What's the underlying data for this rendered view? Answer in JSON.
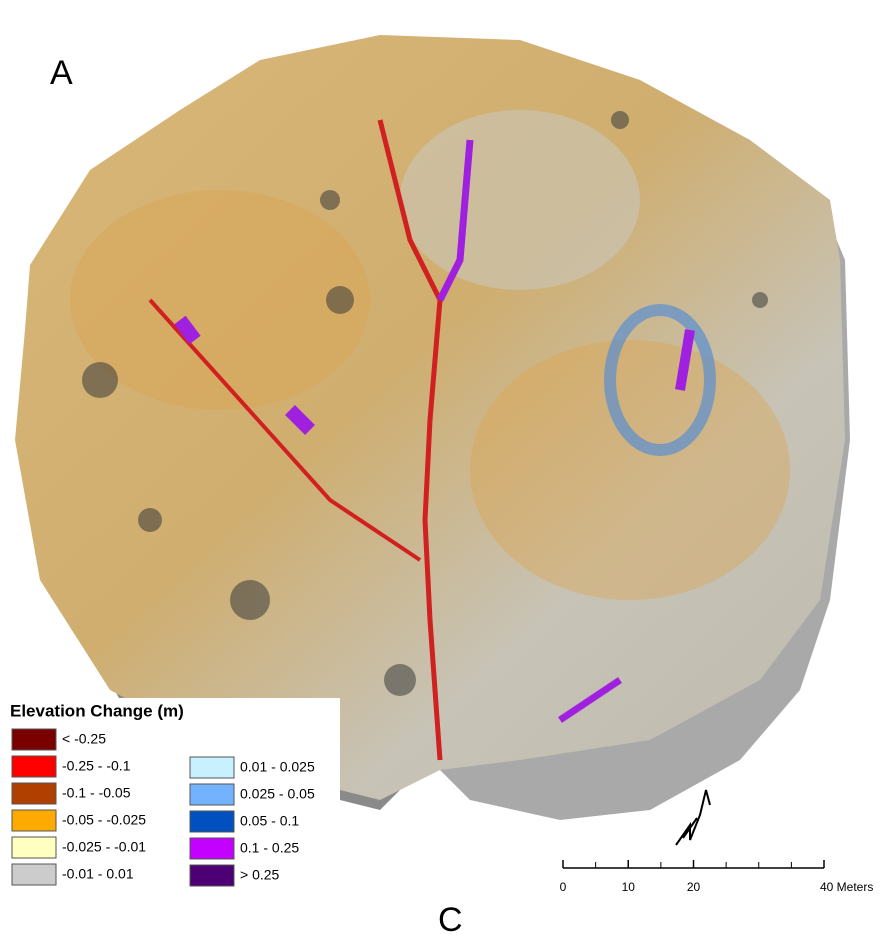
{
  "panel_label": "A",
  "bottom_label": "C",
  "legend": {
    "title": "Elevation Change (m)",
    "columns": [
      [
        {
          "label": "< -0.25",
          "color": "#7a0000"
        },
        {
          "label": "-0.25 - -0.1",
          "color": "#ff0000"
        },
        {
          "label": "-0.1 - -0.05",
          "color": "#b04000"
        },
        {
          "label": "-0.05 - -0.025",
          "color": "#ffaa00"
        },
        {
          "label": "-0.025 - -0.01",
          "color": "#ffffc0"
        },
        {
          "label": "-0.01 - 0.01",
          "color": "#cccccc"
        }
      ],
      [
        {
          "label": "0.01 - 0.025",
          "color": "#c8f0ff"
        },
        {
          "label": "0.025 - 0.05",
          "color": "#73b2ff"
        },
        {
          "label": "0.05 - 0.1",
          "color": "#0050c0"
        },
        {
          "label": "0.1 - 0.25",
          "color": "#c400ff"
        },
        {
          "label": "> 0.25",
          "color": "#4c0073"
        }
      ]
    ]
  },
  "scale_bar": {
    "ticks": [
      0,
      10,
      20,
      {
        "value": 40,
        "label": "40 Meters"
      }
    ]
  }
}
